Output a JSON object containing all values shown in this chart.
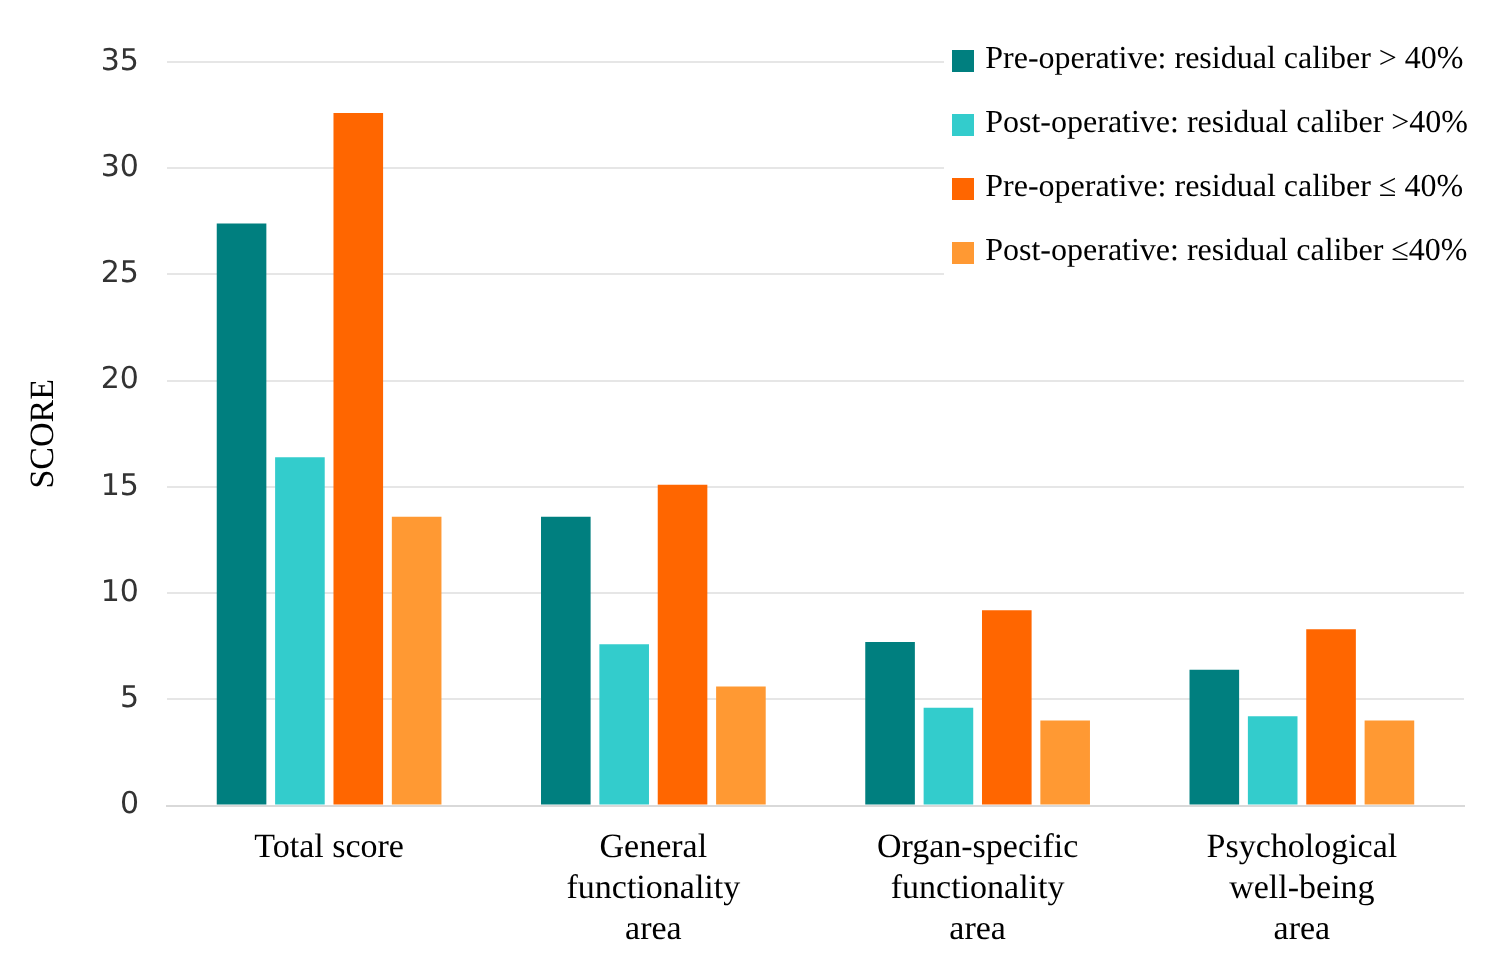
{
  "chart_data": {
    "type": "bar",
    "ylabel": "SCORE",
    "categories": [
      "Total score",
      "General functionality area",
      "Organ-specific functionality area",
      "Psychological well-being area"
    ],
    "series": [
      {
        "name": "Pre-operative: residual caliber > 40%",
        "color": "#007f7f",
        "values": [
          27.4,
          13.6,
          7.7,
          6.4
        ]
      },
      {
        "name": "Post-operative: residual caliber >40%",
        "color": "#33cccc",
        "values": [
          16.4,
          7.6,
          4.6,
          4.2
        ]
      },
      {
        "name": "Pre-operative: residual caliber ≤ 40%",
        "color": "#ff6600",
        "values": [
          32.6,
          15.1,
          9.2,
          8.3
        ]
      },
      {
        "name": "Post-operative: residual caliber ≤40%",
        "color": "#ff9933",
        "values": [
          13.6,
          5.6,
          4.0,
          4.0
        ]
      }
    ],
    "ylim": [
      0,
      35
    ],
    "yticks": [
      0,
      5,
      10,
      15,
      20,
      25,
      30,
      35
    ],
    "grid": "y",
    "legend": "top right"
  }
}
